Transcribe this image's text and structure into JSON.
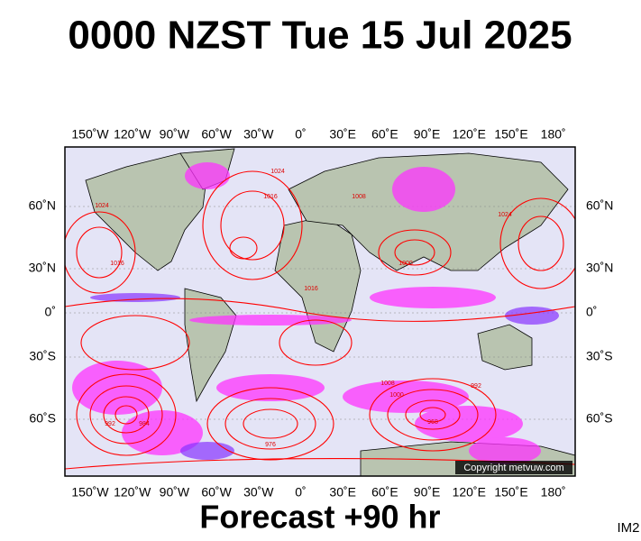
{
  "title": "0000 NZST Tue 15 Jul 2025",
  "map": {
    "lon_labels": [
      "150˚W",
      "120˚W",
      "90˚W",
      "60˚W",
      "30˚W",
      "0˚",
      "30˚E",
      "60˚E",
      "90˚E",
      "120˚E",
      "150˚E",
      "180˚"
    ],
    "lat_labels": [
      "60˚N",
      "30˚N",
      "0˚",
      "30˚S",
      "60˚S"
    ],
    "isobar_labels": [
      "1024",
      "1016",
      "1024",
      "1016",
      "1008",
      "1000",
      "1024",
      "1016",
      "1000",
      "992",
      "984",
      "976",
      "968",
      "1008",
      "992"
    ],
    "copyright": "Copyright metvuw.com"
  },
  "footer": {
    "forecast": "Forecast +90 hr",
    "image_id": "IM2"
  }
}
